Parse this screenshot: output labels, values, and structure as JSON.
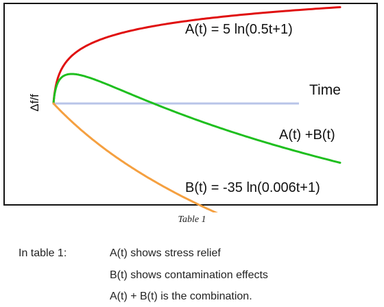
{
  "chart_data": {
    "type": "line",
    "ylabel": "Δf/f",
    "xlabel": "Time",
    "baseline_color": "#b8c4e8",
    "series": [
      {
        "name": "A(t) = 5 ln(0.5t+1)",
        "color": "#e01010",
        "formula": "A(t) = 5 ln(0.5t+1)",
        "a": 5,
        "b": 0.5
      },
      {
        "name": "A(t) +B(t)",
        "color": "#1fbf1f",
        "formula": "A(t) +B(t)"
      },
      {
        "name": "B(t) = -35 ln(0.006t+1)",
        "color": "#f5a040",
        "formula": "B(t) = -35 ln(0.006t+1)",
        "a": -35,
        "b": 0.006
      }
    ]
  },
  "caption": "Table 1",
  "notes": {
    "label": "In table 1:",
    "lines": [
      "A(t) shows stress relief",
      "B(t) shows contamination effects",
      "A(t) + B(t) is the combination."
    ]
  }
}
